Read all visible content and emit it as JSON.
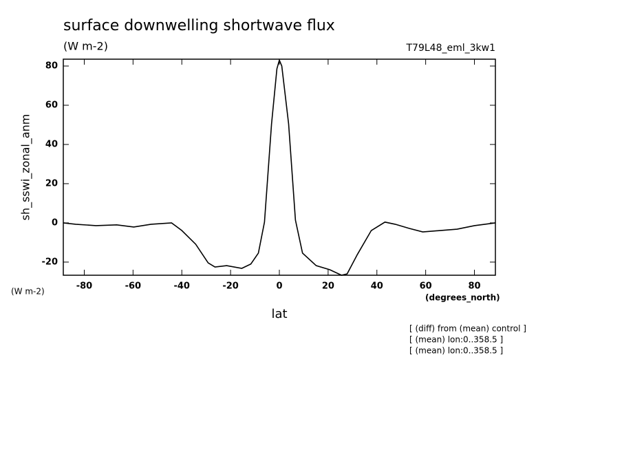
{
  "chart_data": {
    "type": "line",
    "title": "surface downwelling shortwave flux",
    "subtitle": "(W m-2)",
    "run_label": "T79L48_eml_3kw1",
    "y_axis_label": "sh_sswi_zonal_anm",
    "y_units": "(W m-2)",
    "x_units": "(degrees_north)",
    "x_axis_label": "lat",
    "notes": [
      "[ (diff) from (mean) control ]",
      "[ (mean) lon:0..358.5 ]",
      "[ (mean) lon:0..358.5 ]"
    ],
    "x": [
      -88.6,
      -83.5,
      -75.2,
      -66.7,
      -59.7,
      -52.6,
      -44.2,
      -40,
      -34.3,
      -29.2,
      -26.4,
      -21.6,
      -15.4,
      -11.7,
      -8.6,
      -6.1,
      -3.2,
      -1,
      0,
      1,
      3.8,
      6.6,
      9.5,
      15.1,
      20.7,
      25.5,
      27.8,
      32,
      37.7,
      43.3,
      47.5,
      53.2,
      58.8,
      65.9,
      72.9,
      80,
      88.6
    ],
    "series": [
      {
        "color": "#000000",
        "values": [
          0,
          -0.7,
          -1.4,
          -1,
          -2.1,
          -0.7,
          0,
          -3.9,
          -10.9,
          -20.4,
          -22.5,
          -21.8,
          -23.2,
          -21,
          -15.4,
          0.4,
          50.5,
          78.6,
          83,
          80,
          50.5,
          1.4,
          -15.4,
          -21.8,
          -23.9,
          -26.7,
          -26,
          -16.1,
          -3.9,
          0.4,
          -0.7,
          -2.8,
          -4.6,
          -3.9,
          -3.2,
          -1.4,
          0
        ]
      }
    ],
    "xlim": [
      -88.6,
      88.6
    ],
    "ylim": [
      -26.7,
      83.5
    ],
    "xticks": [
      -80,
      -60,
      -40,
      -20,
      0,
      20,
      40,
      60,
      80
    ],
    "yticks": [
      -20,
      0,
      20,
      40,
      60,
      80
    ]
  }
}
